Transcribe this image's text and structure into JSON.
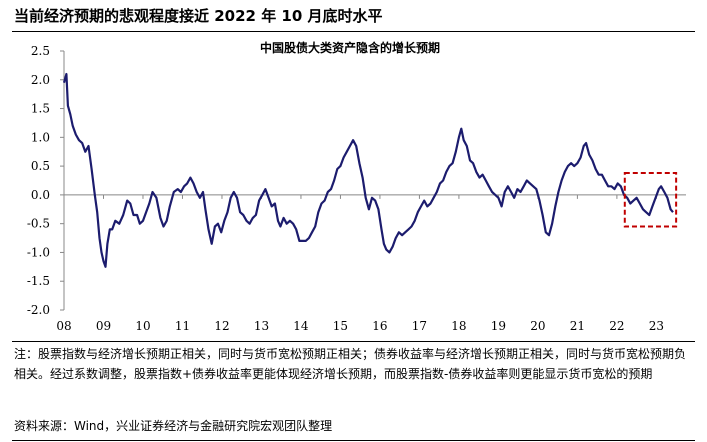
{
  "figure_title": "当前经济预期的悲观程度接近 2022 年 10 月底时水平",
  "note": "注：股票指数与经济增长预期正相关，同时与货币宽松预期正相关；债券收益率与经济增长预期正相关，同时与货币宽松预期负相关。经过系数调整，股票指数+债券收益率更能体现经济增长预期，而股票指数-债券收益率则更能显示货币宽松的预期",
  "source": "资料来源：Wind，兴业证券经济与金融研究院宏观团队整理",
  "colors": {
    "series": "#1c1c6e",
    "highlight_box": "#c00000",
    "axis": "#888888"
  },
  "chart_data": {
    "type": "line",
    "title": "中国股债大类资产隐含的增长预期",
    "xlabel": "",
    "ylabel": "",
    "ylim": [
      -2.0,
      2.5
    ],
    "y_ticks": [
      "2.5",
      "2.0",
      "1.5",
      "1.0",
      "0.5",
      "0.0",
      "-0.5",
      "-1.0",
      "-1.5",
      "-2.0"
    ],
    "x_ticks": [
      "08",
      "09",
      "10",
      "11",
      "12",
      "13",
      "14",
      "15",
      "16",
      "17",
      "18",
      "19",
      "20",
      "21",
      "22",
      "23"
    ],
    "xlim": [
      2008.0,
      2023.75
    ],
    "grid": false,
    "legend": "none",
    "highlight_range": {
      "x": [
        2022.2,
        2023.5
      ],
      "y": [
        -0.55,
        0.38
      ]
    },
    "series": [
      {
        "values": [
          [
            2008.0,
            1.95
          ],
          [
            2008.06,
            2.1
          ],
          [
            2008.1,
            1.55
          ],
          [
            2008.16,
            1.4
          ],
          [
            2008.22,
            1.2
          ],
          [
            2008.3,
            1.05
          ],
          [
            2008.38,
            0.95
          ],
          [
            2008.46,
            0.9
          ],
          [
            2008.54,
            0.75
          ],
          [
            2008.62,
            0.85
          ],
          [
            2008.7,
            0.45
          ],
          [
            2008.78,
            0.0
          ],
          [
            2008.84,
            -0.3
          ],
          [
            2008.9,
            -0.75
          ],
          [
            2008.95,
            -1.0
          ],
          [
            2009.0,
            -1.15
          ],
          [
            2009.05,
            -1.25
          ],
          [
            2009.1,
            -0.85
          ],
          [
            2009.16,
            -0.6
          ],
          [
            2009.22,
            -0.6
          ],
          [
            2009.3,
            -0.45
          ],
          [
            2009.4,
            -0.5
          ],
          [
            2009.5,
            -0.35
          ],
          [
            2009.6,
            -0.1
          ],
          [
            2009.68,
            -0.15
          ],
          [
            2009.76,
            -0.35
          ],
          [
            2009.85,
            -0.35
          ],
          [
            2009.92,
            -0.5
          ],
          [
            2010.0,
            -0.45
          ],
          [
            2010.08,
            -0.3
          ],
          [
            2010.16,
            -0.15
          ],
          [
            2010.24,
            0.05
          ],
          [
            2010.34,
            -0.05
          ],
          [
            2010.44,
            -0.4
          ],
          [
            2010.52,
            -0.55
          ],
          [
            2010.6,
            -0.45
          ],
          [
            2010.68,
            -0.2
          ],
          [
            2010.78,
            0.05
          ],
          [
            2010.88,
            0.1
          ],
          [
            2010.96,
            0.05
          ],
          [
            2011.04,
            0.15
          ],
          [
            2011.12,
            0.2
          ],
          [
            2011.2,
            0.3
          ],
          [
            2011.28,
            0.2
          ],
          [
            2011.36,
            0.05
          ],
          [
            2011.44,
            -0.05
          ],
          [
            2011.52,
            0.05
          ],
          [
            2011.58,
            -0.25
          ],
          [
            2011.66,
            -0.6
          ],
          [
            2011.74,
            -0.85
          ],
          [
            2011.82,
            -0.55
          ],
          [
            2011.9,
            -0.5
          ],
          [
            2011.98,
            -0.65
          ],
          [
            2012.06,
            -0.45
          ],
          [
            2012.14,
            -0.3
          ],
          [
            2012.22,
            -0.05
          ],
          [
            2012.3,
            0.05
          ],
          [
            2012.38,
            -0.05
          ],
          [
            2012.46,
            -0.3
          ],
          [
            2012.54,
            -0.35
          ],
          [
            2012.62,
            -0.45
          ],
          [
            2012.7,
            -0.5
          ],
          [
            2012.78,
            -0.4
          ],
          [
            2012.86,
            -0.35
          ],
          [
            2012.94,
            -0.1
          ],
          [
            2013.02,
            0.0
          ],
          [
            2013.1,
            0.1
          ],
          [
            2013.18,
            -0.05
          ],
          [
            2013.26,
            -0.2
          ],
          [
            2013.34,
            -0.15
          ],
          [
            2013.42,
            -0.45
          ],
          [
            2013.48,
            -0.55
          ],
          [
            2013.56,
            -0.4
          ],
          [
            2013.64,
            -0.5
          ],
          [
            2013.72,
            -0.45
          ],
          [
            2013.8,
            -0.5
          ],
          [
            2013.88,
            -0.6
          ],
          [
            2013.96,
            -0.8
          ],
          [
            2014.04,
            -0.8
          ],
          [
            2014.12,
            -0.8
          ],
          [
            2014.2,
            -0.75
          ],
          [
            2014.28,
            -0.65
          ],
          [
            2014.36,
            -0.55
          ],
          [
            2014.44,
            -0.3
          ],
          [
            2014.52,
            -0.15
          ],
          [
            2014.6,
            -0.1
          ],
          [
            2014.68,
            0.05
          ],
          [
            2014.76,
            0.1
          ],
          [
            2014.84,
            0.25
          ],
          [
            2014.92,
            0.45
          ],
          [
            2015.0,
            0.5
          ],
          [
            2015.08,
            0.65
          ],
          [
            2015.16,
            0.75
          ],
          [
            2015.24,
            0.85
          ],
          [
            2015.32,
            0.95
          ],
          [
            2015.4,
            0.85
          ],
          [
            2015.48,
            0.55
          ],
          [
            2015.56,
            0.3
          ],
          [
            2015.64,
            -0.05
          ],
          [
            2015.72,
            -0.25
          ],
          [
            2015.8,
            -0.05
          ],
          [
            2015.88,
            -0.1
          ],
          [
            2015.96,
            -0.25
          ],
          [
            2016.04,
            -0.6
          ],
          [
            2016.1,
            -0.85
          ],
          [
            2016.16,
            -0.95
          ],
          [
            2016.24,
            -1.0
          ],
          [
            2016.32,
            -0.9
          ],
          [
            2016.4,
            -0.75
          ],
          [
            2016.48,
            -0.65
          ],
          [
            2016.56,
            -0.7
          ],
          [
            2016.64,
            -0.65
          ],
          [
            2016.72,
            -0.6
          ],
          [
            2016.8,
            -0.55
          ],
          [
            2016.88,
            -0.45
          ],
          [
            2016.96,
            -0.3
          ],
          [
            2017.04,
            -0.2
          ],
          [
            2017.12,
            -0.1
          ],
          [
            2017.2,
            -0.2
          ],
          [
            2017.28,
            -0.15
          ],
          [
            2017.36,
            -0.05
          ],
          [
            2017.44,
            0.05
          ],
          [
            2017.52,
            0.2
          ],
          [
            2017.6,
            0.25
          ],
          [
            2017.68,
            0.4
          ],
          [
            2017.76,
            0.5
          ],
          [
            2017.84,
            0.55
          ],
          [
            2017.92,
            0.75
          ],
          [
            2018.0,
            1.0
          ],
          [
            2018.06,
            1.15
          ],
          [
            2018.12,
            0.95
          ],
          [
            2018.2,
            0.85
          ],
          [
            2018.28,
            0.6
          ],
          [
            2018.36,
            0.55
          ],
          [
            2018.44,
            0.4
          ],
          [
            2018.52,
            0.3
          ],
          [
            2018.6,
            0.35
          ],
          [
            2018.68,
            0.25
          ],
          [
            2018.76,
            0.15
          ],
          [
            2018.84,
            0.05
          ],
          [
            2018.92,
            0.0
          ],
          [
            2019.0,
            -0.05
          ],
          [
            2019.08,
            -0.2
          ],
          [
            2019.16,
            0.05
          ],
          [
            2019.24,
            0.15
          ],
          [
            2019.32,
            0.05
          ],
          [
            2019.4,
            -0.05
          ],
          [
            2019.48,
            0.1
          ],
          [
            2019.56,
            0.05
          ],
          [
            2019.64,
            0.15
          ],
          [
            2019.72,
            0.25
          ],
          [
            2019.8,
            0.2
          ],
          [
            2019.88,
            0.15
          ],
          [
            2019.96,
            0.1
          ],
          [
            2020.04,
            -0.1
          ],
          [
            2020.12,
            -0.35
          ],
          [
            2020.2,
            -0.65
          ],
          [
            2020.28,
            -0.7
          ],
          [
            2020.36,
            -0.5
          ],
          [
            2020.44,
            -0.2
          ],
          [
            2020.52,
            0.05
          ],
          [
            2020.6,
            0.25
          ],
          [
            2020.68,
            0.4
          ],
          [
            2020.76,
            0.5
          ],
          [
            2020.84,
            0.55
          ],
          [
            2020.92,
            0.5
          ],
          [
            2021.0,
            0.55
          ],
          [
            2021.08,
            0.65
          ],
          [
            2021.16,
            0.85
          ],
          [
            2021.22,
            0.9
          ],
          [
            2021.3,
            0.7
          ],
          [
            2021.38,
            0.6
          ],
          [
            2021.46,
            0.45
          ],
          [
            2021.54,
            0.35
          ],
          [
            2021.62,
            0.35
          ],
          [
            2021.7,
            0.25
          ],
          [
            2021.78,
            0.15
          ],
          [
            2021.86,
            0.15
          ],
          [
            2021.94,
            0.1
          ],
          [
            2022.02,
            0.2
          ],
          [
            2022.1,
            0.15
          ],
          [
            2022.18,
            0.0
          ],
          [
            2022.26,
            -0.05
          ],
          [
            2022.34,
            -0.15
          ],
          [
            2022.42,
            -0.1
          ],
          [
            2022.5,
            -0.05
          ],
          [
            2022.58,
            -0.15
          ],
          [
            2022.66,
            -0.25
          ],
          [
            2022.74,
            -0.3
          ],
          [
            2022.82,
            -0.35
          ],
          [
            2022.9,
            -0.2
          ],
          [
            2022.98,
            -0.05
          ],
          [
            2023.06,
            0.1
          ],
          [
            2023.12,
            0.15
          ],
          [
            2023.2,
            0.05
          ],
          [
            2023.28,
            -0.05
          ],
          [
            2023.36,
            -0.25
          ],
          [
            2023.42,
            -0.3
          ]
        ]
      }
    ]
  }
}
